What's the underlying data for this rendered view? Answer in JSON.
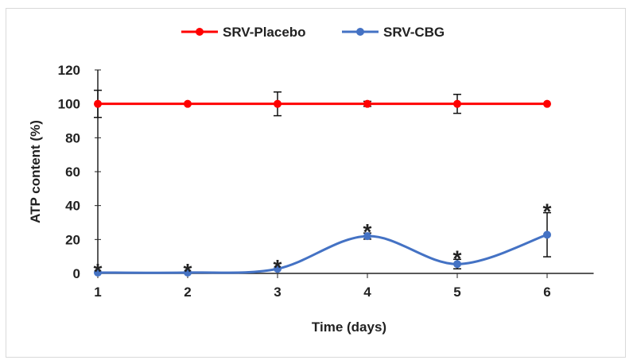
{
  "chart_data": {
    "type": "line",
    "title": "",
    "xlabel": "Time (days)",
    "ylabel": "ATP  content (%)",
    "x": [
      1,
      2,
      3,
      4,
      5,
      6
    ],
    "xlim": [
      1,
      6.5
    ],
    "ylim": [
      0,
      120
    ],
    "yticks": [
      0,
      20,
      40,
      60,
      80,
      100,
      120
    ],
    "grid": false,
    "legend": "top",
    "series": [
      {
        "name": "SRV-Placebo",
        "color": "#ff0000",
        "values": [
          100,
          100,
          100,
          100,
          100,
          100
        ],
        "errors": [
          8,
          0,
          7,
          1.5,
          5.6,
          0
        ],
        "smooth": false
      },
      {
        "name": "SRV-CBG",
        "color": "#4472c4",
        "values": [
          0.5,
          0.5,
          2.7,
          22,
          5.5,
          22.8
        ],
        "errors": [
          0,
          0,
          0,
          1.8,
          2.8,
          13
        ],
        "smooth": true
      }
    ],
    "annotations": [
      "*",
      "*",
      "*",
      "*",
      "*",
      "*"
    ]
  }
}
